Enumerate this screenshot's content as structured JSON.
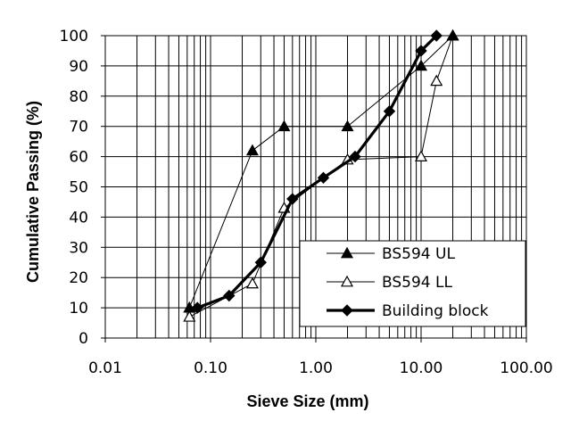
{
  "chart_data": {
    "type": "line",
    "x_scale": "log",
    "xlim": [
      0.01,
      100
    ],
    "ylim": [
      0,
      100
    ],
    "xlabel": "Sieve Size (mm)",
    "ylabel": "Cumulative Passing (%)",
    "x_ticks": [
      "0.01",
      "0.10",
      "1.00",
      "10.00",
      "100.00"
    ],
    "y_ticks": [
      "0",
      "10",
      "20",
      "30",
      "40",
      "50",
      "60",
      "70",
      "80",
      "90",
      "100"
    ],
    "grid": "on (log minor vertical lines, major horizontal lines)",
    "legend_position": "bottom-right",
    "series": [
      {
        "name": "BS594 UL",
        "marker": "filled-triangle",
        "line": "thin",
        "color": "#000000",
        "x": [
          0.063,
          0.25,
          0.5,
          2.0,
          10.0,
          20.0
        ],
        "y": [
          10,
          62,
          70,
          70,
          90,
          100
        ]
      },
      {
        "name": "BS594 LL",
        "marker": "open-triangle",
        "line": "thin",
        "color": "#000000",
        "x": [
          0.063,
          0.25,
          0.5,
          2.0,
          10.0,
          14.0,
          20.0
        ],
        "y": [
          7,
          18,
          43,
          59,
          60,
          85,
          100
        ]
      },
      {
        "name": "Building block",
        "marker": "filled-diamond",
        "line": "thick",
        "color": "#000000",
        "x": [
          0.075,
          0.15,
          0.3,
          0.6,
          1.18,
          2.36,
          5.0,
          10.0,
          14.0
        ],
        "y": [
          10,
          14,
          25,
          46,
          53,
          60,
          75,
          95,
          100
        ]
      }
    ]
  }
}
